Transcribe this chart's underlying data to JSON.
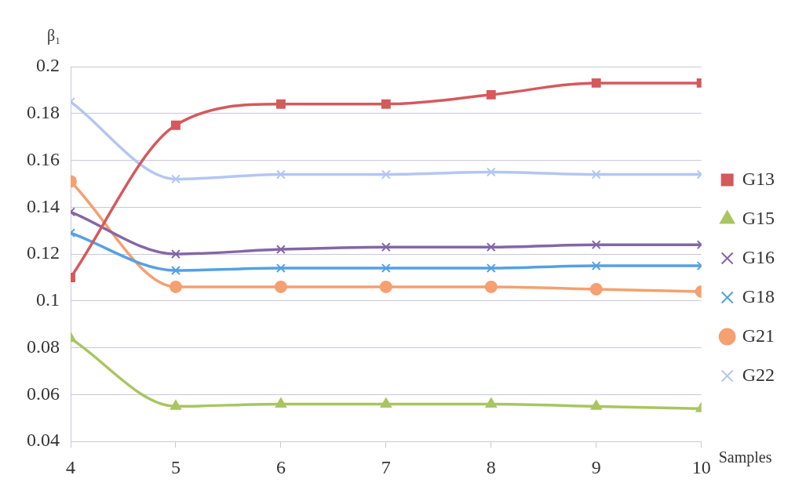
{
  "chart_data": {
    "type": "line",
    "xlabel": "Samples",
    "ylabel": "β₁",
    "x": [
      4,
      5,
      6,
      7,
      8,
      9,
      10
    ],
    "series": [
      {
        "name": "G13",
        "color": "#d45a5c",
        "marker": "square",
        "values": [
          0.11,
          0.175,
          0.184,
          0.184,
          0.188,
          0.193,
          0.193
        ]
      },
      {
        "name": "G15",
        "color": "#a9c560",
        "marker": "triangle",
        "values": [
          0.084,
          0.055,
          0.056,
          0.056,
          0.056,
          0.055,
          0.054
        ]
      },
      {
        "name": "G16",
        "color": "#8466a8",
        "marker": "cross",
        "values": [
          0.138,
          0.12,
          0.122,
          0.123,
          0.123,
          0.124,
          0.124
        ]
      },
      {
        "name": "G18",
        "color": "#55a0e6",
        "marker": "cross",
        "values": [
          0.129,
          0.113,
          0.114,
          0.114,
          0.114,
          0.115,
          0.115
        ]
      },
      {
        "name": "G21",
        "color": "#f5a070",
        "marker": "circle",
        "values": [
          0.151,
          0.106,
          0.106,
          0.106,
          0.106,
          0.105,
          0.104
        ]
      },
      {
        "name": "G22",
        "color": "#b4c6f2",
        "marker": "cross",
        "values": [
          0.185,
          0.152,
          0.154,
          0.154,
          0.155,
          0.154,
          0.154
        ]
      }
    ],
    "xlim": [
      4,
      10
    ],
    "xticks": [
      4,
      5,
      6,
      7,
      8,
      9,
      10
    ],
    "ylim": [
      0.04,
      0.2
    ],
    "yticks": [
      0.04,
      0.06,
      0.08,
      0.1,
      0.12,
      0.14,
      0.16,
      0.18,
      0.2
    ],
    "grid": "y",
    "legend": "right"
  }
}
